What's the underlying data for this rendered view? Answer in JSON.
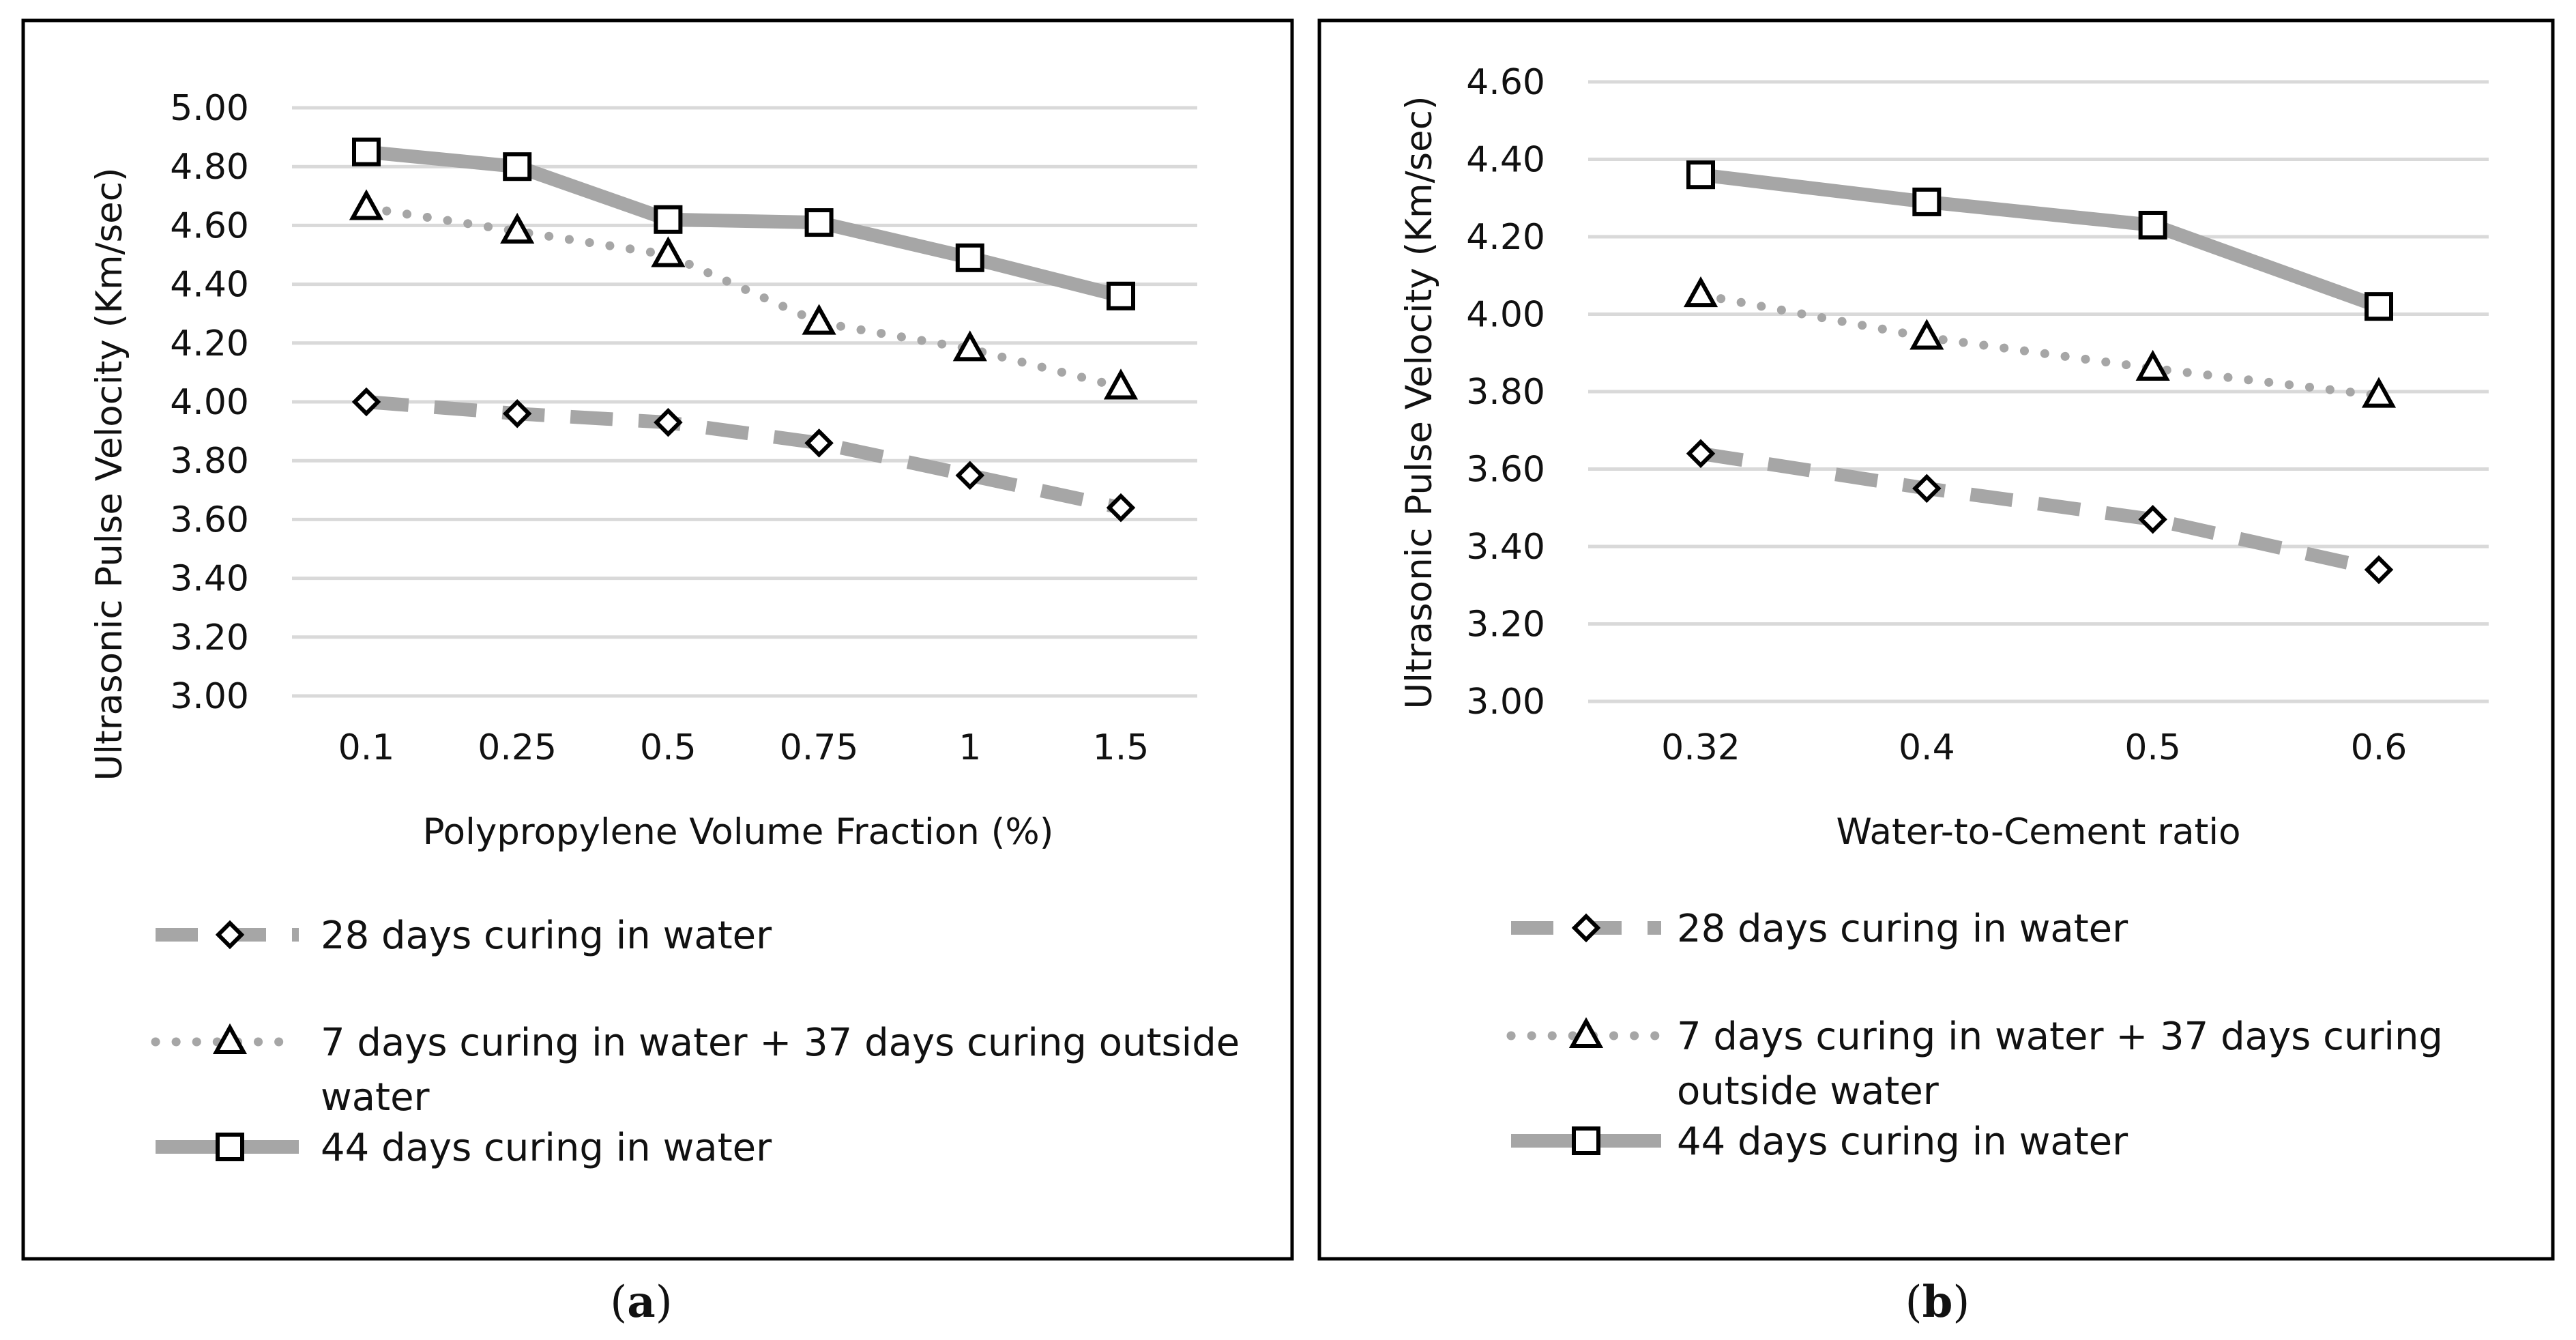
{
  "chart_data": [
    {
      "type": "line",
      "panel_label": "a",
      "title": "",
      "xlabel": "Polypropylene Volume Fraction (%)",
      "ylabel": "Ultrasonic Pulse Velocity (Km/sec)",
      "categories": [
        "0.1",
        "0.25",
        "0.5",
        "0.75",
        "1",
        "1.5"
      ],
      "ylim": [
        3.0,
        5.0
      ],
      "yticks": [
        "3.00",
        "3.20",
        "3.40",
        "3.60",
        "3.80",
        "4.00",
        "4.20",
        "4.40",
        "4.60",
        "4.80",
        "5.00"
      ],
      "grid": true,
      "legend_position": "bottom",
      "series": [
        {
          "name": "28 days curing in water",
          "values": [
            4.0,
            3.96,
            3.93,
            3.86,
            3.75,
            3.64
          ],
          "marker": "diamond",
          "style": "dashed"
        },
        {
          "name": "7 days curing in water + 37 days curing outside water",
          "name_lines": [
            "7 days curing in water + 37 days curing outside",
            "water"
          ],
          "values": [
            4.66,
            4.58,
            4.5,
            4.27,
            4.18,
            4.05
          ],
          "marker": "triangle",
          "style": "dotted"
        },
        {
          "name": "44 days curing in water",
          "values": [
            4.85,
            4.8,
            4.62,
            4.61,
            4.49,
            4.36
          ],
          "marker": "square",
          "style": "solid"
        }
      ]
    },
    {
      "type": "line",
      "panel_label": "b",
      "title": "",
      "xlabel": "Water-to-Cement ratio",
      "ylabel": "Ultrasonic Pulse Velocity (Km/sec)",
      "categories": [
        "0.32",
        "0.4",
        "0.5",
        "0.6"
      ],
      "ylim": [
        3.0,
        4.6
      ],
      "yticks": [
        "3.00",
        "3.20",
        "3.40",
        "3.60",
        "3.80",
        "4.00",
        "4.20",
        "4.40",
        "4.60"
      ],
      "grid": true,
      "legend_position": "bottom",
      "series": [
        {
          "name": "28 days curing in water",
          "values": [
            3.64,
            3.55,
            3.47,
            3.34
          ],
          "marker": "diamond",
          "style": "dashed"
        },
        {
          "name": "7 days curing in water + 37 days curing outside water",
          "name_lines": [
            "7 days curing in water + 37 days curing",
            "outside water"
          ],
          "values": [
            4.05,
            3.94,
            3.86,
            3.79
          ],
          "marker": "triangle",
          "style": "dotted"
        },
        {
          "name": "44 days curing in water",
          "values": [
            4.36,
            4.29,
            4.23,
            4.02
          ],
          "marker": "square",
          "style": "solid"
        }
      ]
    }
  ],
  "colors": {
    "series_line": "#a6a6a6",
    "marker_stroke": "#000000",
    "grid": "#d9d9d9",
    "frame": "#000000"
  }
}
